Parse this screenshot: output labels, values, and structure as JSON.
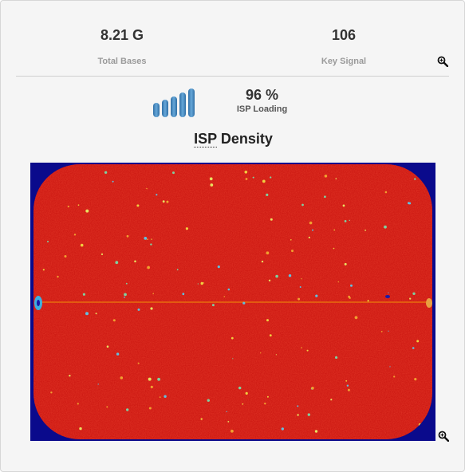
{
  "stats": {
    "total_bases": {
      "value": "8.21 G",
      "label": "Total Bases"
    },
    "key_signal": {
      "value": "106",
      "label": "Key Signal"
    }
  },
  "isp_loading": {
    "value": "96 %",
    "label": "ISP Loading",
    "percent": 96
  },
  "density": {
    "title_abbr": "ISP",
    "title_rest": " Density"
  },
  "icons": {
    "zoom": "magnifier-zoom-icon",
    "signal_bars": "signal-bars-icon"
  },
  "colors": {
    "panel_background": "#f5f5f5",
    "heatmap_background": "#0a0a8c",
    "heatmap_density": "#c8110d",
    "bar_fill": "#4d8fc4"
  }
}
